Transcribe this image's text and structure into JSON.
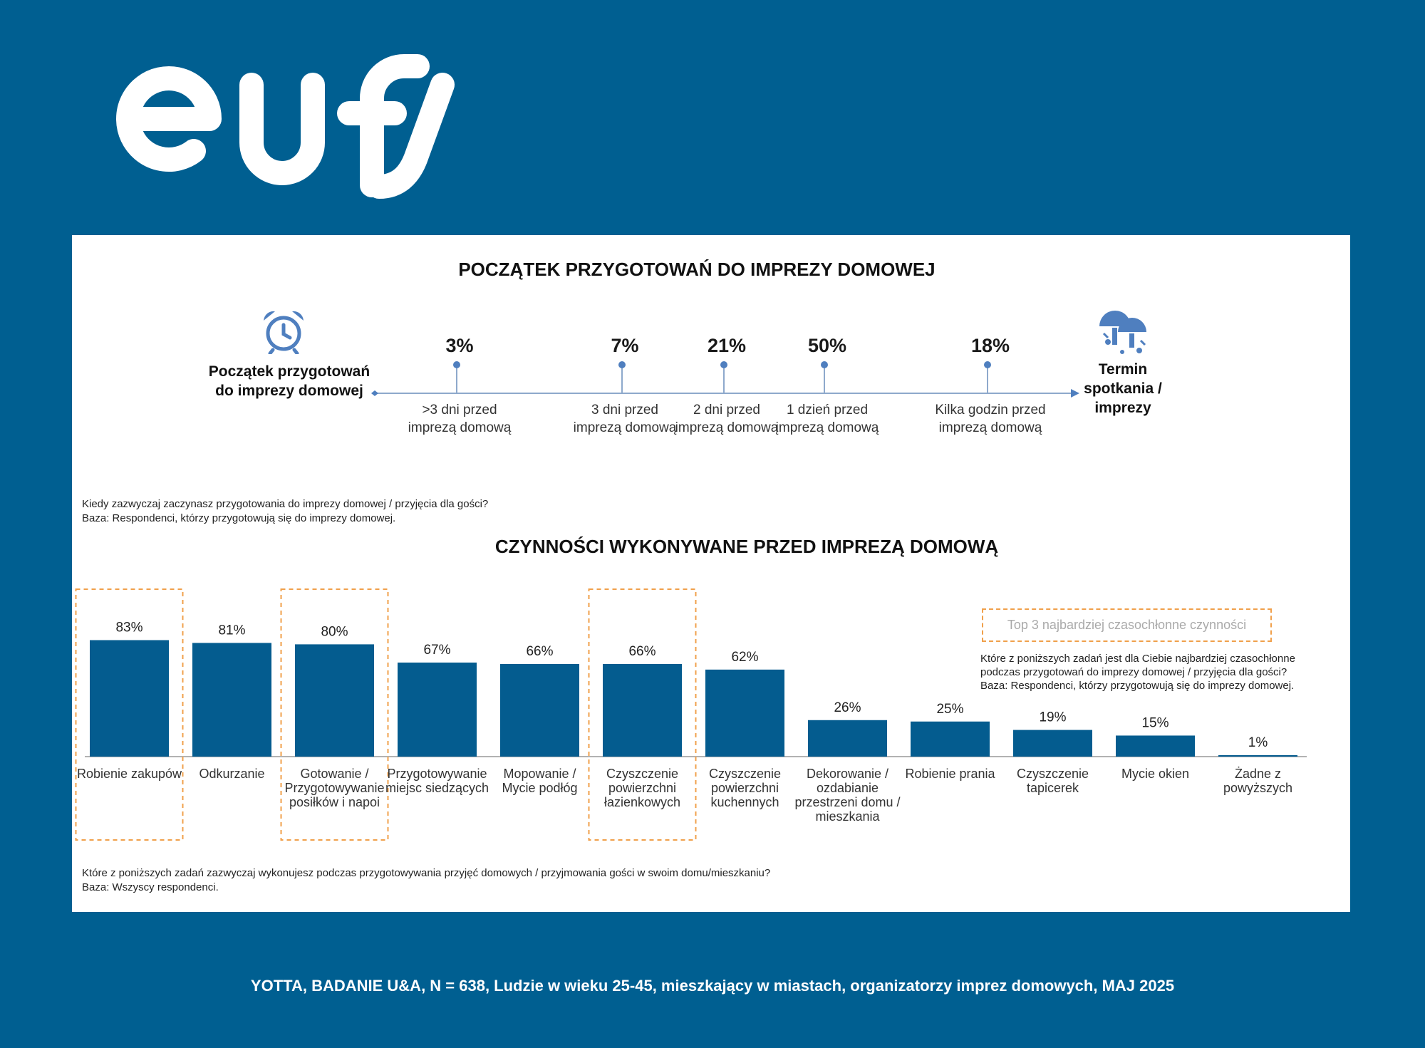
{
  "brand": {
    "logo_text": "eufy"
  },
  "timeline": {
    "title": "POCZĄTEK PRZYGOTOWAŃ DO IMPREZY DOMOWEJ",
    "start_label": "Początek przygotowań do imprezy domowej",
    "end_label": "Termin spotkania / imprezy",
    "icons": {
      "start": "alarm-clock-icon",
      "end": "party-balloons-icon"
    },
    "milestones": [
      {
        "pct": "3%",
        "label": ">3 dni przed imprezą domową"
      },
      {
        "pct": "7%",
        "label": "3 dni przed imprezą domową"
      },
      {
        "pct": "21%",
        "label": "2 dni przed imprezą domową"
      },
      {
        "pct": "50%",
        "label": "1 dzień przed imprezą domową"
      },
      {
        "pct": "18%",
        "label": "Kilka godzin przed imprezą domową"
      }
    ],
    "question": "Kiedy zazwyczaj zaczynasz przygotowania do imprezy domowej / przyjęcia dla gości?",
    "base": "Baza: Respondenci, którzy przygotowują się do imprezy domowej."
  },
  "chart_data": {
    "type": "bar",
    "title": "CZYNNOŚCI WYKONYWANE PRZED IMPREZĄ DOMOWĄ",
    "categories": [
      "Robienie zakupów",
      "Odkurzanie",
      "Gotowanie / Przygotowywanie posiłków i napoi",
      "Przygotowywanie miejsc siedzących",
      "Mopowanie / Mycie podłóg",
      "Czyszczenie powierzchni łazienkowych",
      "Czyszczenie powierzchni kuchennych",
      "Dekorowanie / ozdabianie przestrzeni domu / mieszkania",
      "Robienie prania",
      "Czyszczenie tapicerek",
      "Mycie okien",
      "Żadne z powyższych"
    ],
    "values": [
      83,
      81,
      80,
      67,
      66,
      66,
      62,
      26,
      25,
      19,
      15,
      1
    ],
    "value_labels": [
      "83%",
      "81%",
      "80%",
      "67%",
      "66%",
      "66%",
      "62%",
      "26%",
      "25%",
      "19%",
      "15%",
      "1%"
    ],
    "highlighted_indices": [
      0,
      2,
      5
    ],
    "ylim": [
      0,
      100
    ],
    "grid": false,
    "bar_color": "#045c8f",
    "highlight_color": "#f0a04b",
    "legend": "Top 3 najbardziej czasochłonne czynności",
    "legend_question": "Które z poniższych zadań jest dla Ciebie najbardziej czasochłonne podczas przygotowań do imprezy domowej / przyjęcia dla gości?",
    "legend_base": "Baza: Respondenci, którzy przygotowują się do imprezy domowej.",
    "question": "Które z poniższych zadań zazwyczaj wykonujesz podczas przygotowywania przyjęć domowych / przyjmowania gości w swoim domu/mieszkaniu?",
    "base": "Baza: Wszyscy respondenci."
  },
  "footer": "YOTTA, BADANIE U&A, N = 638, Ludzie w wieku 25-45, mieszkający w miastach, organizatorzy imprez domowych, MAJ 2025",
  "colors": {
    "background": "#005f91",
    "panel": "#ffffff",
    "accent": "#4f7fbf"
  }
}
